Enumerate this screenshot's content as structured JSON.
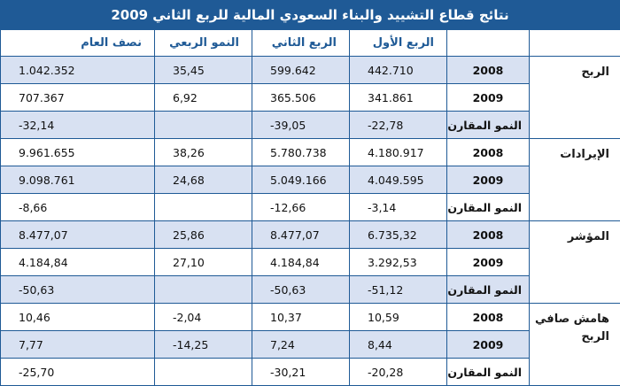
{
  "title": "نتائج قطاع التشييد والبناء السعودي المالية للربع الثاني 2009",
  "headers": {
    "q1": "الربع الأول",
    "q2": "الربع الثاني",
    "qoq": "النمو الربعي",
    "half": "نصف العام"
  },
  "groups": [
    {
      "label": "الربح",
      "rows": [
        {
          "label": "2008",
          "q1": "442.710",
          "q2": "599.642",
          "qoq": "35,45",
          "half": "1.042.352"
        },
        {
          "label": "2009",
          "q1": "341.861",
          "q2": "365.506",
          "qoq": "6,92",
          "half": "707.367"
        },
        {
          "label": "النمو المقارن",
          "q1": "-22,78",
          "q2": "-39,05",
          "qoq": "",
          "half": "-32,14"
        }
      ]
    },
    {
      "label": "الإيرادات",
      "rows": [
        {
          "label": "2008",
          "q1": "4.180.917",
          "q2": "5.780.738",
          "qoq": "38,26",
          "half": "9.961.655"
        },
        {
          "label": "2009",
          "q1": "4.049.595",
          "q2": "5.049.166",
          "qoq": "24,68",
          "half": "9.098.761"
        },
        {
          "label": "النمو المقارن",
          "q1": "-3,14",
          "q2": "-12,66",
          "qoq": "",
          "half": "-8,66"
        }
      ]
    },
    {
      "label": "المؤشر",
      "rows": [
        {
          "label": "2008",
          "q1": "6.735,32",
          "q2": "8.477,07",
          "qoq": "25,86",
          "half": "8.477,07"
        },
        {
          "label": "2009",
          "q1": "3.292,53",
          "q2": "4.184,84",
          "qoq": "27,10",
          "half": "4.184,84"
        },
        {
          "label": "النمو المقارن",
          "q1": "-51,12",
          "q2": "-50,63",
          "qoq": "",
          "half": "-50,63"
        }
      ]
    },
    {
      "label": "هامش صافي الربح",
      "rows": [
        {
          "label": "2008",
          "q1": "10,59",
          "q2": "10,37",
          "qoq": "-2,04",
          "half": "10,46"
        },
        {
          "label": "2009",
          "q1": "8,44",
          "q2": "7,24",
          "qoq": "-14,25",
          "half": "7,77"
        },
        {
          "label": "النمو المقارن",
          "q1": "-20,28",
          "q2": "-30,21",
          "qoq": "",
          "half": "-25,70"
        }
      ]
    }
  ]
}
